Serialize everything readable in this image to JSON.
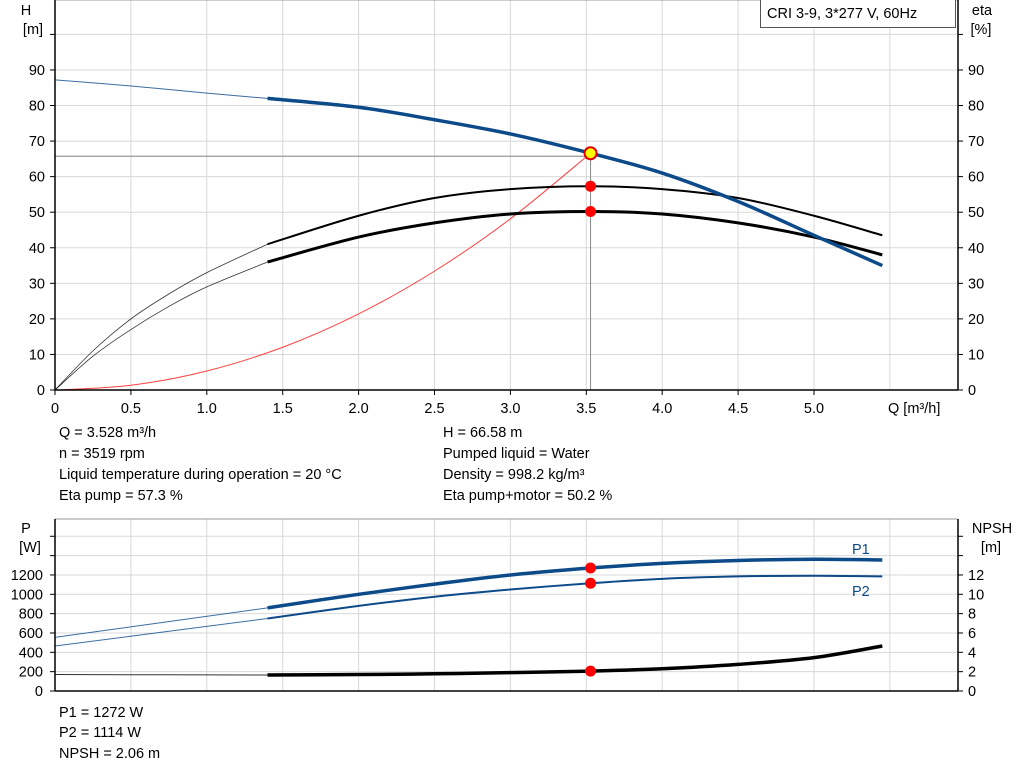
{
  "chart_data": [
    {
      "type": "line",
      "title": "CRI 3-9, 3*277 V, 60Hz",
      "xlabel": "Q [m³/h]",
      "ylabel": "H\n[m]",
      "ylabel_left_name": "H",
      "ylabel_left_unit": "[m]",
      "ylabel_right_name": "eta",
      "ylabel_right_unit": "[%]",
      "xlim": [
        0,
        5.8
      ],
      "ylim": [
        0,
        110
      ],
      "xticks": [
        "0",
        "0.5",
        "1.0",
        "1.5",
        "2.0",
        "2.5",
        "3.0",
        "3.5",
        "4.0",
        "4.5",
        "5.0"
      ],
      "yticks": [
        "0",
        "10",
        "20",
        "30",
        "40",
        "50",
        "60",
        "70",
        "80",
        "90"
      ],
      "grid": true,
      "legend": "top-right",
      "thick_from_q": 1.4,
      "series": [
        {
          "key": "H",
          "color": "#0d4a8a",
          "x": [
            0,
            0.5,
            1.0,
            1.4,
            2.0,
            2.5,
            3.0,
            3.528,
            4.0,
            4.5,
            5.0,
            5.45
          ],
          "values": [
            87.2,
            85.5,
            83.5,
            82,
            79.5,
            76,
            72,
            66.58,
            61,
            53,
            43.5,
            35
          ]
        },
        {
          "key": "eta_pump",
          "color": "#000000",
          "x": [
            0,
            0.25,
            0.5,
            0.75,
            1.0,
            1.4,
            2.0,
            2.5,
            3.0,
            3.528,
            4.0,
            4.5,
            5.0,
            5.45
          ],
          "values": [
            0,
            11,
            20,
            27,
            33,
            41,
            49,
            54,
            56.5,
            57.3,
            56.5,
            54,
            49,
            43.5
          ]
        },
        {
          "key": "eta_pump_motor",
          "color": "#000000",
          "x": [
            0,
            0.25,
            0.5,
            0.75,
            1.0,
            1.4,
            2.0,
            2.5,
            3.0,
            3.528,
            4.0,
            4.5,
            5.0,
            5.45
          ],
          "values": [
            0,
            9.5,
            17,
            23.5,
            29,
            36,
            43,
            47,
            49.5,
            50.2,
            49.5,
            47,
            43,
            38
          ]
        },
        {
          "key": "system_curve",
          "color": "#ff4040",
          "x": [
            0,
            0.5,
            1.0,
            1.5,
            2.0,
            2.5,
            3.0,
            3.528
          ],
          "values": [
            0,
            1.34,
            5.35,
            12.03,
            21.4,
            33.43,
            48.14,
            66.58
          ]
        }
      ],
      "operating_point": {
        "q": 3.528,
        "h": 66.58,
        "eta_pump": 57.3,
        "eta_pump_motor": 50.2
      }
    },
    {
      "type": "line",
      "xlim": [
        0,
        5.8
      ],
      "ylabel_left_name": "P",
      "ylabel_left_unit": "[W]",
      "ylabel_right_name": "NPSH",
      "ylabel_right_unit": "[m]",
      "ylim_left": [
        0,
        1800
      ],
      "ylim_right": [
        0,
        18
      ],
      "yticks_left": [
        "0",
        "200",
        "400",
        "600",
        "800",
        "1000",
        "1200"
      ],
      "yticks_right": [
        "0",
        "2",
        "4",
        "6",
        "8",
        "10",
        "12"
      ],
      "grid": true,
      "thick_from_q": 1.4,
      "series": [
        {
          "key": "P1",
          "name": "P1",
          "color": "#0d4a8a",
          "x": [
            0,
            1.4,
            2.0,
            2.5,
            3.0,
            3.528,
            4.0,
            4.5,
            5.0,
            5.45
          ],
          "values": [
            555,
            860,
            1000,
            1105,
            1200,
            1272,
            1320,
            1350,
            1362,
            1355
          ]
        },
        {
          "key": "P2",
          "name": "P2",
          "color": "#0d4a8a",
          "x": [
            0,
            1.4,
            2.0,
            2.5,
            3.0,
            3.528,
            4.0,
            4.5,
            5.0,
            5.45
          ],
          "values": [
            465,
            750,
            880,
            975,
            1050,
            1114,
            1160,
            1185,
            1192,
            1185
          ]
        },
        {
          "key": "NPSH",
          "color": "#000000",
          "axis": "right",
          "x": [
            0,
            1.4,
            2.0,
            2.5,
            3.0,
            3.528,
            4.0,
            4.5,
            5.0,
            5.45
          ],
          "values": [
            1.7,
            1.65,
            1.7,
            1.78,
            1.9,
            2.06,
            2.3,
            2.75,
            3.45,
            4.65
          ]
        }
      ],
      "operating_point": {
        "q": 3.528,
        "p1": 1272,
        "p2": 1114,
        "npsh": 2.06
      }
    }
  ],
  "info": {
    "q": "Q = 3.528 m³/h",
    "n": "n = 3519 rpm",
    "temp": "Liquid temperature during operation = 20 °C",
    "eta_pump": "Eta pump = 57.3 %",
    "h": "H = 66.58 m",
    "liquid": "Pumped liquid = Water",
    "density": "Density = 998.2 kg/m³",
    "eta_pm": "Eta pump+motor = 50.2 %",
    "p1": "P1 = 1272 W",
    "p2": "P2 = 1114 W",
    "npsh": "NPSH = 2.06 m"
  }
}
